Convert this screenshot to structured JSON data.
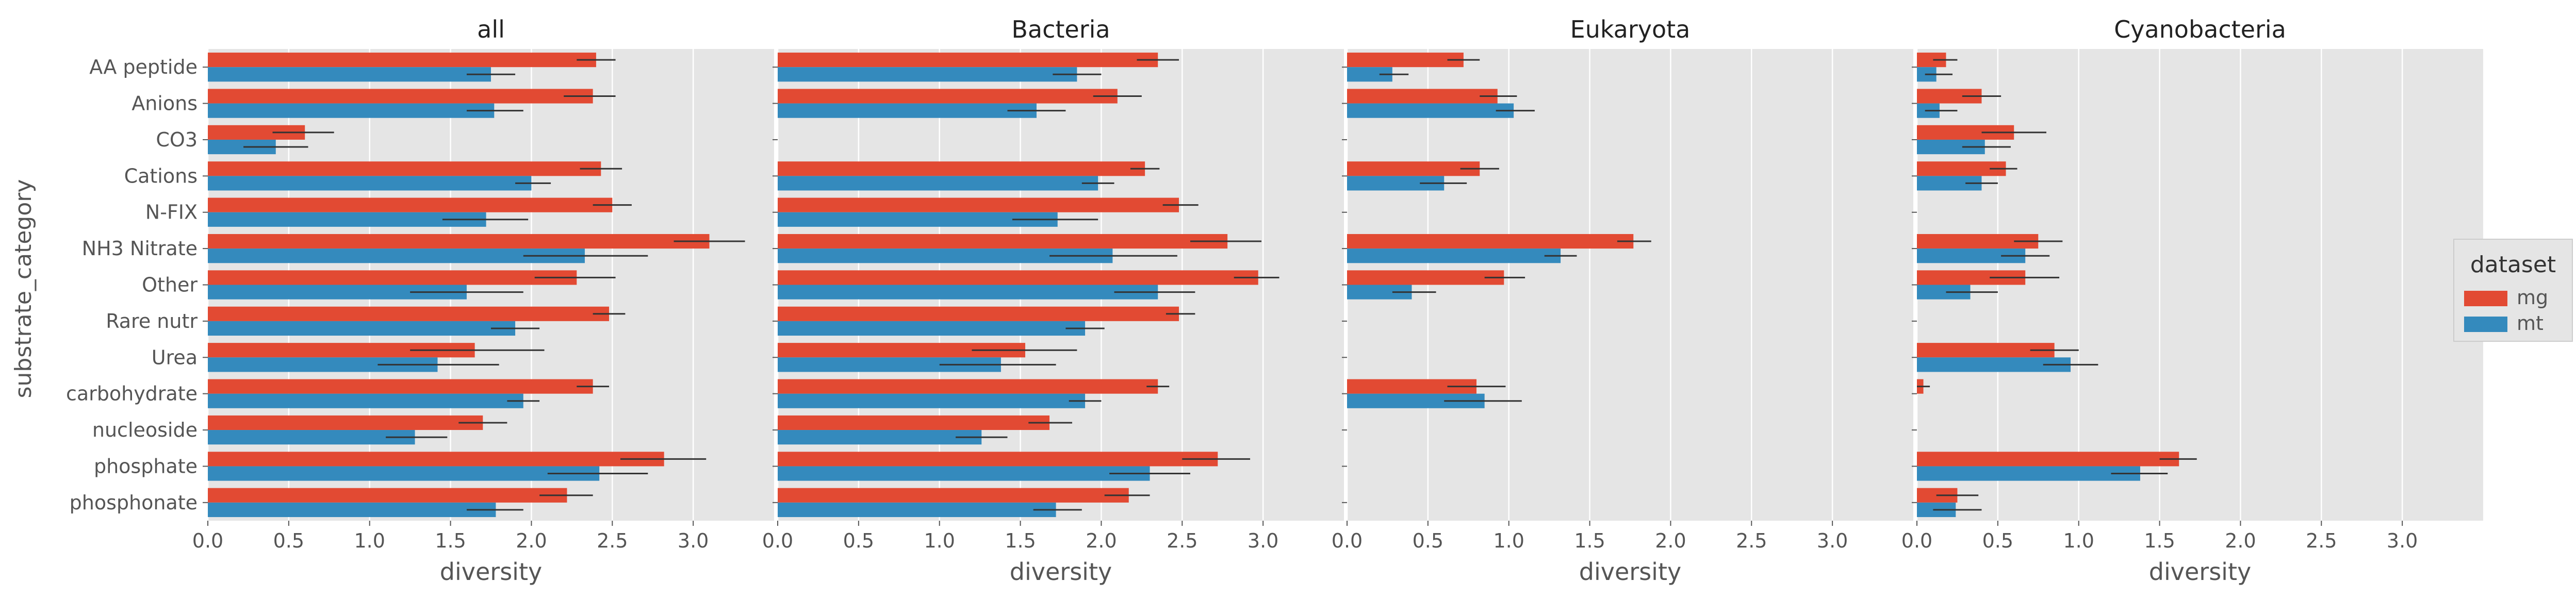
{
  "figure": {
    "ylabel": "substrate_category",
    "legend_title": "dataset"
  },
  "colors": {
    "mg": "#E24A33",
    "mt": "#348ABD",
    "panel_bg": "#E5E5E5",
    "grid": "#FFFFFF",
    "text": "#555555",
    "errorbar": "#333333"
  },
  "chart_data": [
    {
      "type": "bar",
      "orientation": "horizontal",
      "title": "all",
      "xlabel": "diversity",
      "xlim": [
        0,
        3.5
      ],
      "xticks": [
        "0.0",
        "0.5",
        "1.0",
        "1.5",
        "2.0",
        "2.5",
        "3.0"
      ],
      "categories": [
        "AA peptide",
        "Anions",
        "CO3",
        "Cations",
        "N-FIX",
        "NH3 Nitrate",
        "Other",
        "Rare nutr",
        "Urea",
        "carbohydrate",
        "nucleoside",
        "phosphate",
        "phosphonate"
      ],
      "series": [
        {
          "name": "mg",
          "values": [
            2.4,
            2.38,
            0.6,
            2.43,
            2.5,
            3.1,
            2.28,
            2.48,
            1.65,
            2.38,
            1.7,
            2.82,
            2.22
          ],
          "err_low": [
            2.28,
            2.2,
            0.4,
            2.3,
            2.38,
            2.88,
            2.02,
            2.38,
            1.25,
            2.28,
            1.55,
            2.55,
            2.05
          ],
          "err_high": [
            2.52,
            2.52,
            0.78,
            2.56,
            2.62,
            3.32,
            2.52,
            2.58,
            2.08,
            2.48,
            1.85,
            3.08,
            2.38
          ]
        },
        {
          "name": "mt",
          "values": [
            1.75,
            1.77,
            0.42,
            2.0,
            1.72,
            2.33,
            1.6,
            1.9,
            1.42,
            1.95,
            1.28,
            2.42,
            1.78
          ],
          "err_low": [
            1.6,
            1.6,
            0.22,
            1.9,
            1.45,
            1.95,
            1.25,
            1.75,
            1.05,
            1.85,
            1.1,
            2.1,
            1.6
          ],
          "err_high": [
            1.9,
            1.95,
            0.62,
            2.12,
            1.98,
            2.72,
            1.95,
            2.05,
            1.8,
            2.05,
            1.48,
            2.72,
            1.95
          ]
        }
      ]
    },
    {
      "type": "bar",
      "orientation": "horizontal",
      "title": "Bacteria",
      "xlabel": "diversity",
      "xlim": [
        0,
        3.5
      ],
      "xticks": [
        "0.0",
        "0.5",
        "1.0",
        "1.5",
        "2.0",
        "2.5",
        "3.0"
      ],
      "categories": [
        "AA peptide",
        "Anions",
        "CO3",
        "Cations",
        "N-FIX",
        "NH3 Nitrate",
        "Other",
        "Rare nutr",
        "Urea",
        "carbohydrate",
        "nucleoside",
        "phosphate",
        "phosphonate"
      ],
      "series": [
        {
          "name": "mg",
          "values": [
            2.35,
            2.1,
            null,
            2.27,
            2.48,
            2.78,
            2.97,
            2.48,
            1.53,
            2.35,
            1.68,
            2.72,
            2.17
          ],
          "err_low": [
            2.22,
            1.95,
            null,
            2.18,
            2.38,
            2.55,
            2.82,
            2.4,
            1.2,
            2.28,
            1.55,
            2.5,
            2.02
          ],
          "err_high": [
            2.48,
            2.25,
            null,
            2.36,
            2.6,
            2.99,
            3.1,
            2.58,
            1.85,
            2.42,
            1.82,
            2.92,
            2.3
          ]
        },
        {
          "name": "mt",
          "values": [
            1.85,
            1.6,
            null,
            1.98,
            1.73,
            2.07,
            2.35,
            1.9,
            1.38,
            1.9,
            1.26,
            2.3,
            1.72
          ],
          "err_low": [
            1.7,
            1.42,
            null,
            1.88,
            1.45,
            1.68,
            2.08,
            1.78,
            1.0,
            1.8,
            1.1,
            2.05,
            1.58
          ],
          "err_high": [
            2.0,
            1.78,
            null,
            2.08,
            1.98,
            2.47,
            2.58,
            2.02,
            1.72,
            2.0,
            1.42,
            2.55,
            1.88
          ]
        }
      ]
    },
    {
      "type": "bar",
      "orientation": "horizontal",
      "title": "Eukaryota",
      "xlabel": "diversity",
      "xlim": [
        0,
        3.5
      ],
      "xticks": [
        "0.0",
        "0.5",
        "1.0",
        "1.5",
        "2.0",
        "2.5",
        "3.0"
      ],
      "categories": [
        "AA peptide",
        "Anions",
        "CO3",
        "Cations",
        "N-FIX",
        "NH3 Nitrate",
        "Other",
        "Rare nutr",
        "Urea",
        "carbohydrate",
        "nucleoside",
        "phosphate",
        "phosphonate"
      ],
      "series": [
        {
          "name": "mg",
          "values": [
            0.72,
            0.93,
            null,
            0.82,
            null,
            1.77,
            0.97,
            null,
            null,
            0.8,
            null,
            null,
            null
          ],
          "err_low": [
            0.62,
            0.82,
            null,
            0.7,
            null,
            1.67,
            0.85,
            null,
            null,
            0.62,
            null,
            null,
            null
          ],
          "err_high": [
            0.82,
            1.05,
            null,
            0.94,
            null,
            1.88,
            1.1,
            null,
            null,
            0.98,
            null,
            null,
            null
          ]
        },
        {
          "name": "mt",
          "values": [
            0.28,
            1.03,
            null,
            0.6,
            null,
            1.32,
            0.4,
            null,
            null,
            0.85,
            null,
            null,
            null
          ],
          "err_low": [
            0.2,
            0.92,
            null,
            0.45,
            null,
            1.22,
            0.28,
            null,
            null,
            0.6,
            null,
            null,
            null
          ],
          "err_high": [
            0.38,
            1.16,
            null,
            0.74,
            null,
            1.42,
            0.55,
            null,
            null,
            1.08,
            null,
            null,
            null
          ]
        }
      ]
    },
    {
      "type": "bar",
      "orientation": "horizontal",
      "title": "Cyanobacteria",
      "xlabel": "diversity",
      "xlim": [
        0,
        3.5
      ],
      "xticks": [
        "0.0",
        "0.5",
        "1.0",
        "1.5",
        "2.0",
        "2.5",
        "3.0"
      ],
      "categories": [
        "AA peptide",
        "Anions",
        "CO3",
        "Cations",
        "N-FIX",
        "NH3 Nitrate",
        "Other",
        "Rare nutr",
        "Urea",
        "carbohydrate",
        "nucleoside",
        "phosphate",
        "phosphonate"
      ],
      "series": [
        {
          "name": "mg",
          "values": [
            0.18,
            0.4,
            0.6,
            0.55,
            null,
            0.75,
            0.67,
            null,
            0.85,
            0.04,
            null,
            1.62,
            0.25
          ],
          "err_low": [
            0.1,
            0.28,
            0.4,
            0.45,
            null,
            0.6,
            0.45,
            null,
            0.7,
            0.0,
            null,
            1.5,
            0.12
          ],
          "err_high": [
            0.25,
            0.52,
            0.8,
            0.62,
            null,
            0.9,
            0.88,
            null,
            1.0,
            0.08,
            null,
            1.73,
            0.38
          ]
        },
        {
          "name": "mt",
          "values": [
            0.12,
            0.14,
            0.42,
            0.4,
            null,
            0.67,
            0.33,
            null,
            0.95,
            0.0,
            null,
            1.38,
            0.24
          ],
          "err_low": [
            0.05,
            0.05,
            0.28,
            0.3,
            null,
            0.52,
            0.18,
            null,
            0.78,
            0.0,
            null,
            1.2,
            0.1
          ],
          "err_high": [
            0.22,
            0.25,
            0.58,
            0.5,
            null,
            0.82,
            0.5,
            null,
            1.12,
            0.0,
            null,
            1.55,
            0.4
          ]
        }
      ]
    }
  ]
}
